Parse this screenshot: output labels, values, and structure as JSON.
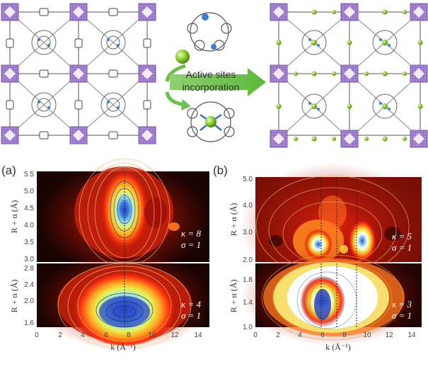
{
  "top": {
    "active_sites_line1": "Active sites",
    "active_sites_line2": "incorporation",
    "arrow_color": "#6cc04a",
    "text_color": "#e02020"
  },
  "panels": {
    "a": {
      "label": "(a)",
      "upper": {
        "kappa": "κ = 8",
        "sigma": "σ = 1",
        "ylabel": "R + α (Å)",
        "yticks": [
          "3.0",
          "3.5",
          "4.0",
          "4.5",
          "5.0",
          "5.5"
        ]
      },
      "lower": {
        "kappa": "κ = 4",
        "sigma": "σ = 1",
        "ylabel": "R + α (Å)",
        "yticks": [
          "1.6",
          "2.0",
          "2.4",
          "2.8"
        ]
      },
      "xlabel": "k (Å⁻¹)",
      "xticks": [
        "0",
        "2",
        "4",
        "6",
        "8",
        "10",
        "12",
        "14"
      ]
    },
    "b": {
      "label": "(b)",
      "upper": {
        "kappa": "κ = 5",
        "sigma": "σ = 1",
        "ylabel": "R + α (Å)",
        "yticks": [
          "2.0",
          "3.0",
          "4.0",
          "5.0"
        ]
      },
      "lower": {
        "kappa": "κ = 3",
        "sigma": "σ = 1",
        "ylabel": "R + α (Å)",
        "yticks": [
          "1.0",
          "1.4",
          "1.8"
        ]
      },
      "xlabel": "k (Å⁻¹)",
      "xticks": [
        "0",
        "2",
        "4",
        "6",
        "8",
        "10",
        "12",
        "14"
      ]
    }
  },
  "chart_data": [
    {
      "type": "heatmap",
      "panel": "a-upper",
      "xlim": [
        0,
        15
      ],
      "ylim": [
        3.0,
        5.5
      ],
      "peaks": [
        {
          "x": 7.3,
          "y": 4.3
        }
      ],
      "dashed_x": [
        7.3
      ]
    },
    {
      "type": "heatmap",
      "panel": "a-lower",
      "xlim": [
        0,
        15
      ],
      "ylim": [
        1.5,
        2.95
      ],
      "peaks": [
        {
          "x": 7.3,
          "y": 2.1
        }
      ],
      "dashed_x": [
        7.3
      ]
    },
    {
      "type": "heatmap",
      "panel": "b-upper",
      "xlim": [
        0,
        15
      ],
      "ylim": [
        2.0,
        5.0
      ],
      "peaks": [
        {
          "x": 6.5,
          "y": 2.9
        },
        {
          "x": 8.9,
          "y": 2.9
        }
      ],
      "dashed_x": [
        6.1,
        7.4,
        9.1
      ]
    },
    {
      "type": "heatmap",
      "panel": "b-lower",
      "xlim": [
        0,
        15
      ],
      "ylim": [
        1.0,
        2.0
      ],
      "peaks": [
        {
          "x": 6.2,
          "y": 1.5
        }
      ],
      "dashed_x": [
        6.1,
        7.4,
        9.1
      ]
    }
  ]
}
